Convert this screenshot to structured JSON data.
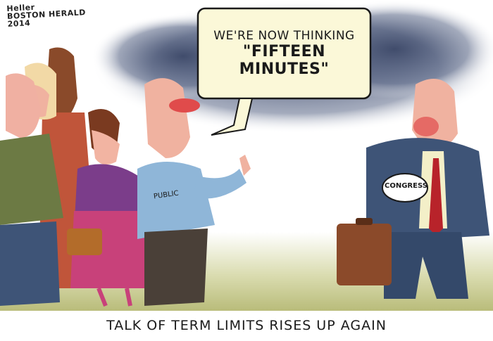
{
  "signature": {
    "artist": "Heller",
    "publication": "BOSTON HERALD",
    "year": "2014"
  },
  "speech_bubble": {
    "line1": "WE'RE NOW THINKING",
    "line2": "\"FIFTEEN",
    "line3": "MINUTES\""
  },
  "labels": {
    "public": "PUBLIC",
    "congress": "CONGRESS"
  },
  "caption": "TALK OF TERM LIMITS RISES UP AGAIN",
  "colors": {
    "cloud": "#4d5a78",
    "ground": "#c7c98c",
    "public_shirt": "#8fb6d8",
    "congress_suit": "#3e5477",
    "briefcase": "#8b4a2a",
    "woman_dress": "#c8417a"
  }
}
